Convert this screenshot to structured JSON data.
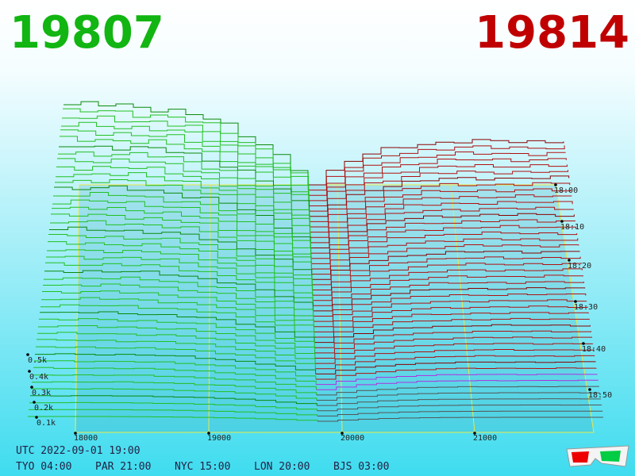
{
  "header": {
    "bid": "19807",
    "ask": "19814"
  },
  "price_axis": [
    "18000",
    "19000",
    "20000",
    "21000"
  ],
  "depth_axis": [
    "0.5k",
    "0.4k",
    "0.3k",
    "0.2k",
    "0.1k"
  ],
  "time_axis": [
    "18:00",
    "18:10",
    "18:20",
    "18:30",
    "18:40",
    "18:50"
  ],
  "footer": {
    "utc": "UTC 2022-09-01 19:00",
    "clocks": [
      "TYO 04:00",
      "PAR 21:00",
      "NYC 15:00",
      "LON 20:00",
      "BJS 03:00"
    ]
  }
}
